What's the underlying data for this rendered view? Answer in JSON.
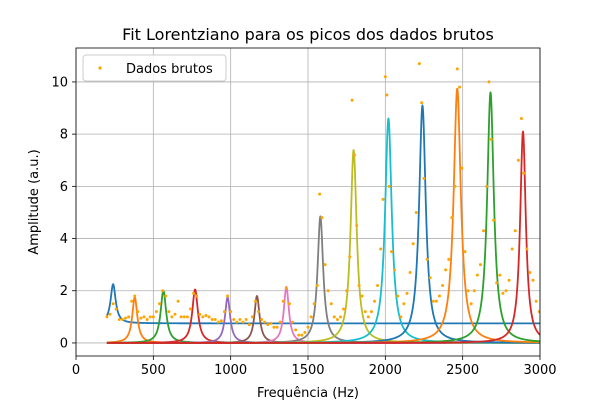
{
  "chart_data": {
    "type": "line",
    "title": "Fit Lorentziano para os picos dos dados brutos",
    "xlabel": "Frequência (Hz)",
    "ylabel": "Amplitude (a.u.)",
    "xlim": [
      0,
      3000
    ],
    "ylim": [
      -0.5,
      11.3
    ],
    "xticks": [
      0,
      500,
      1000,
      1500,
      2000,
      2500,
      3000
    ],
    "yticks": [
      0,
      2,
      4,
      6,
      8,
      10
    ],
    "grid": true,
    "legend": {
      "placement": "top-left",
      "entries": [
        "Dados brutos"
      ]
    },
    "x_domain": [
      200,
      3000
    ],
    "scatter_series": {
      "name": "Dados brutos",
      "color": "#ffa500",
      "points": [
        [
          200,
          1.0
        ],
        [
          220,
          1.1
        ],
        [
          240,
          1.5
        ],
        [
          260,
          1.3
        ],
        [
          280,
          0.9
        ],
        [
          300,
          0.9
        ],
        [
          320,
          0.95
        ],
        [
          340,
          1.0
        ],
        [
          360,
          1.6
        ],
        [
          380,
          1.8
        ],
        [
          400,
          1.2
        ],
        [
          420,
          0.95
        ],
        [
          440,
          1.0
        ],
        [
          460,
          0.9
        ],
        [
          480,
          1.0
        ],
        [
          500,
          1.0
        ],
        [
          520,
          1.2
        ],
        [
          540,
          1.5
        ],
        [
          560,
          2.0
        ],
        [
          580,
          1.8
        ],
        [
          600,
          1.2
        ],
        [
          620,
          1.0
        ],
        [
          640,
          1.1
        ],
        [
          660,
          1.6
        ],
        [
          680,
          1.0
        ],
        [
          700,
          1.0
        ],
        [
          720,
          1.0
        ],
        [
          740,
          1.3
        ],
        [
          760,
          1.9
        ],
        [
          780,
          1.8
        ],
        [
          800,
          1.1
        ],
        [
          820,
          1.0
        ],
        [
          840,
          1.05
        ],
        [
          860,
          1.0
        ],
        [
          880,
          0.9
        ],
        [
          900,
          0.9
        ],
        [
          920,
          0.8
        ],
        [
          940,
          0.85
        ],
        [
          960,
          1.2
        ],
        [
          980,
          1.8
        ],
        [
          1000,
          1.2
        ],
        [
          1020,
          0.9
        ],
        [
          1040,
          0.8
        ],
        [
          1060,
          0.9
        ],
        [
          1080,
          0.8
        ],
        [
          1100,
          0.9
        ],
        [
          1120,
          0.7
        ],
        [
          1140,
          1.0
        ],
        [
          1160,
          1.6
        ],
        [
          1180,
          1.2
        ],
        [
          1200,
          0.9
        ],
        [
          1220,
          0.8
        ],
        [
          1240,
          0.7
        ],
        [
          1260,
          0.75
        ],
        [
          1280,
          0.6
        ],
        [
          1300,
          0.6
        ],
        [
          1320,
          0.8
        ],
        [
          1340,
          1.6
        ],
        [
          1360,
          2.1
        ],
        [
          1380,
          1.5
        ],
        [
          1400,
          0.8
        ],
        [
          1420,
          0.5
        ],
        [
          1440,
          0.3
        ],
        [
          1460,
          0.3
        ],
        [
          1480,
          0.4
        ],
        [
          1500,
          0.6
        ],
        [
          1520,
          1.0
        ],
        [
          1540,
          1.5
        ],
        [
          1560,
          2.2
        ],
        [
          1575,
          5.7
        ],
        [
          1590,
          4.8
        ],
        [
          1610,
          3.0
        ],
        [
          1630,
          2.0
        ],
        [
          1650,
          1.5
        ],
        [
          1670,
          1.0
        ],
        [
          1690,
          0.9
        ],
        [
          1710,
          1.0
        ],
        [
          1730,
          1.3
        ],
        [
          1750,
          2.0
        ],
        [
          1770,
          3.3
        ],
        [
          1785,
          9.3
        ],
        [
          1800,
          7.2
        ],
        [
          1815,
          4.5
        ],
        [
          1830,
          2.2
        ],
        [
          1850,
          1.8
        ],
        [
          1870,
          1.2
        ],
        [
          1890,
          1.0
        ],
        [
          1910,
          1.2
        ],
        [
          1930,
          1.6
        ],
        [
          1950,
          2.2
        ],
        [
          1970,
          3.6
        ],
        [
          1985,
          5.5
        ],
        [
          2000,
          10.2
        ],
        [
          2010,
          9.5
        ],
        [
          2025,
          6.0
        ],
        [
          2040,
          3.5
        ],
        [
          2060,
          2.8
        ],
        [
          2080,
          1.8
        ],
        [
          2100,
          1.0
        ],
        [
          2120,
          1.5
        ],
        [
          2140,
          1.9
        ],
        [
          2160,
          2.7
        ],
        [
          2180,
          3.8
        ],
        [
          2200,
          5.0
        ],
        [
          2220,
          10.7
        ],
        [
          2235,
          9.2
        ],
        [
          2250,
          6.3
        ],
        [
          2270,
          3.2
        ],
        [
          2290,
          2.5
        ],
        [
          2310,
          1.6
        ],
        [
          2330,
          1.6
        ],
        [
          2350,
          1.8
        ],
        [
          2370,
          2.2
        ],
        [
          2390,
          2.8
        ],
        [
          2410,
          3.2
        ],
        [
          2430,
          4.8
        ],
        [
          2450,
          6.0
        ],
        [
          2465,
          10.5
        ],
        [
          2480,
          9.8
        ],
        [
          2495,
          6.7
        ],
        [
          2515,
          3.5
        ],
        [
          2535,
          2.0
        ],
        [
          2555,
          1.5
        ],
        [
          2575,
          2.0
        ],
        [
          2595,
          2.6
        ],
        [
          2615,
          3.0
        ],
        [
          2635,
          4.3
        ],
        [
          2655,
          6.0
        ],
        [
          2670,
          10.0
        ],
        [
          2685,
          7.8
        ],
        [
          2700,
          4.7
        ],
        [
          2720,
          2.3
        ],
        [
          2740,
          2.6
        ],
        [
          2760,
          1.9
        ],
        [
          2780,
          2.0
        ],
        [
          2800,
          2.4
        ],
        [
          2820,
          3.6
        ],
        [
          2840,
          4.3
        ],
        [
          2860,
          7.0
        ],
        [
          2880,
          8.6
        ],
        [
          2895,
          6.5
        ],
        [
          2915,
          3.6
        ],
        [
          2935,
          2.7
        ],
        [
          2955,
          2.4
        ],
        [
          2975,
          1.6
        ],
        [
          2995,
          1.2
        ]
      ]
    },
    "series": [
      {
        "type": "lorentzian",
        "color": "#1f77b4",
        "center": 240,
        "amplitude": 1.5,
        "gamma": 20,
        "baseline": 0.75
      },
      {
        "type": "lorentzian",
        "color": "#ff7f0e",
        "center": 380,
        "amplitude": 1.75,
        "gamma": 20,
        "baseline": 0.0
      },
      {
        "type": "lorentzian",
        "color": "#2ca02c",
        "center": 565,
        "amplitude": 2.0,
        "gamma": 22,
        "baseline": 0.0
      },
      {
        "type": "lorentzian",
        "color": "#d62728",
        "center": 770,
        "amplitude": 2.05,
        "gamma": 22,
        "baseline": 0.0
      },
      {
        "type": "lorentzian",
        "color": "#9467bd",
        "center": 980,
        "amplitude": 1.75,
        "gamma": 20,
        "baseline": 0.0
      },
      {
        "type": "lorentzian",
        "color": "#8c564b",
        "center": 1170,
        "amplitude": 1.8,
        "gamma": 20,
        "baseline": 0.0
      },
      {
        "type": "lorentzian",
        "color": "#e377c2",
        "center": 1360,
        "amplitude": 2.15,
        "gamma": 20,
        "baseline": 0.0
      },
      {
        "type": "lorentzian",
        "color": "#7f7f7f",
        "center": 1580,
        "amplitude": 4.85,
        "gamma": 22,
        "baseline": 0.0
      },
      {
        "type": "lorentzian",
        "color": "#bcbd22",
        "center": 1795,
        "amplitude": 7.4,
        "gamma": 24,
        "baseline": 0.0
      },
      {
        "type": "lorentzian",
        "color": "#17becf",
        "center": 2020,
        "amplitude": 8.6,
        "gamma": 26,
        "baseline": 0.0
      },
      {
        "type": "lorentzian",
        "color": "#1f77b4",
        "center": 2240,
        "amplitude": 9.1,
        "gamma": 26,
        "baseline": 0.0
      },
      {
        "type": "lorentzian",
        "color": "#ff7f0e",
        "center": 2465,
        "amplitude": 9.75,
        "gamma": 28,
        "baseline": 0.0
      },
      {
        "type": "lorentzian",
        "color": "#2ca02c",
        "center": 2680,
        "amplitude": 9.6,
        "gamma": 26,
        "baseline": 0.0
      },
      {
        "type": "lorentzian",
        "color": "#d62728",
        "center": 2890,
        "amplitude": 8.1,
        "gamma": 22,
        "baseline": 0.0
      }
    ]
  }
}
